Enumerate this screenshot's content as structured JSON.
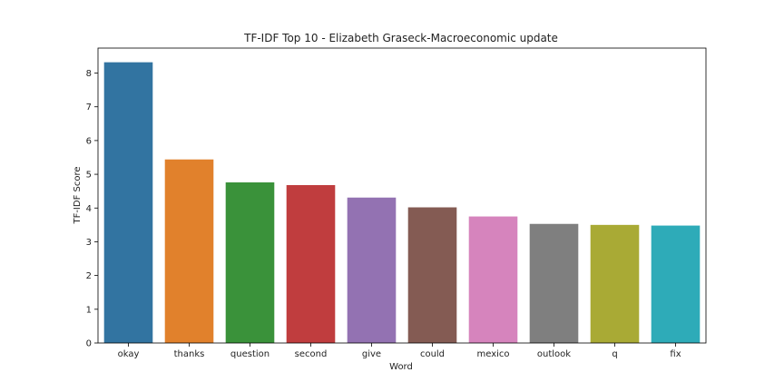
{
  "chart_data": {
    "type": "bar",
    "title": "TF-IDF Top 10 - Elizabeth Graseck-Macroeconomic update",
    "xlabel": "Word",
    "ylabel": "TF-IDF Score",
    "categories": [
      "okay",
      "thanks",
      "question",
      "second",
      "give",
      "could",
      "mexico",
      "outlook",
      "q",
      "fix"
    ],
    "values": [
      8.32,
      5.44,
      4.76,
      4.68,
      4.31,
      4.02,
      3.75,
      3.53,
      3.5,
      3.48
    ],
    "colors": [
      "#3274a1",
      "#e1812c",
      "#3a923a",
      "#c03d3e",
      "#9372b2",
      "#845b53",
      "#d684bd",
      "#7f7f7f",
      "#a9aa35",
      "#2eabb8"
    ],
    "ylim": [
      0,
      8.74
    ],
    "yticks": [
      0,
      1,
      2,
      3,
      4,
      5,
      6,
      7,
      8
    ],
    "grid": false,
    "legend": "none"
  }
}
